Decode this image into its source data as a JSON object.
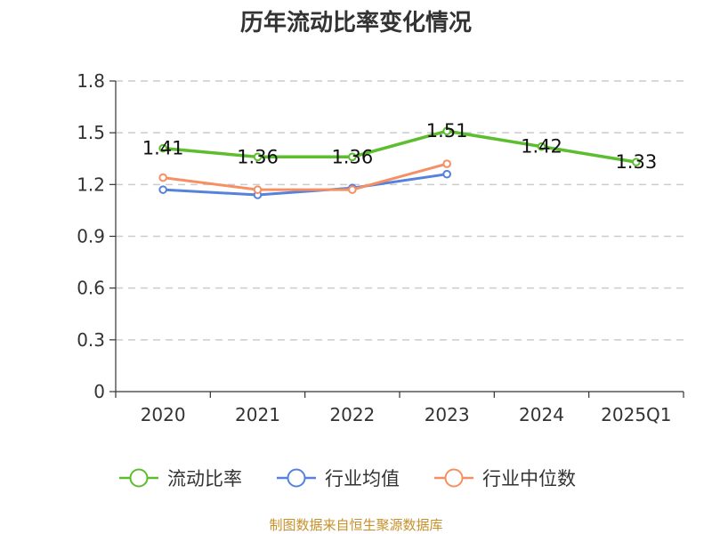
{
  "chart_data": {
    "type": "line",
    "title": "历年流动比率变化情况",
    "categories": [
      "2020",
      "2021",
      "2022",
      "2023",
      "2024",
      "2025Q1"
    ],
    "ylim": [
      0,
      1.8
    ],
    "yticks": [
      "0",
      "0.3",
      "0.6",
      "0.9",
      "1.2",
      "1.5",
      "1.8"
    ],
    "ytick_values": [
      0,
      0.3,
      0.6,
      0.9,
      1.2,
      1.5,
      1.8
    ],
    "grid": true,
    "legend_position": "bottom",
    "series": [
      {
        "name": "流动比率",
        "color": "#5cbd2e",
        "values": [
          1.41,
          1.36,
          1.36,
          1.51,
          1.42,
          1.33
        ],
        "labels": [
          "1.41",
          "1.36",
          "1.36",
          "1.51",
          "1.42",
          "1.33"
        ],
        "show_labels": true
      },
      {
        "name": "行业均值",
        "color": "#5582dc",
        "values": [
          1.17,
          1.14,
          1.18,
          1.26,
          null,
          null
        ],
        "show_labels": false
      },
      {
        "name": "行业中位数",
        "color": "#f59064",
        "values": [
          1.24,
          1.17,
          1.17,
          1.32,
          null,
          null
        ],
        "show_labels": false
      }
    ]
  },
  "source_text": "制图数据来自恒生聚源数据库"
}
